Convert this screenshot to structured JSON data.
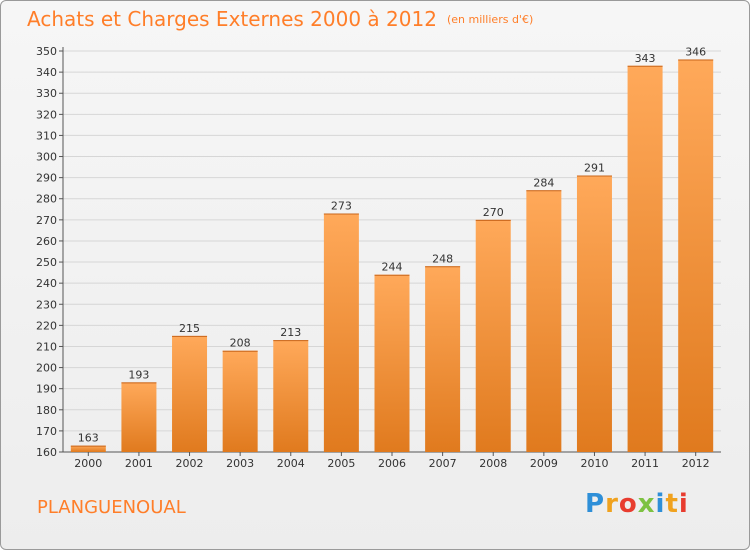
{
  "header": {
    "title": "Achats et Charges Externes 2000 à 2012",
    "unit": "(en milliers d'€)"
  },
  "footer": {
    "location": "PLANGUENOUAL",
    "brand_letters": [
      {
        "char": "P",
        "color": "#2e8fd8"
      },
      {
        "char": "r",
        "color": "#f0a21e"
      },
      {
        "char": "o",
        "color": "#e83c2f"
      },
      {
        "char": "x",
        "color": "#7dc242"
      },
      {
        "char": "i",
        "color": "#2e8fd8"
      },
      {
        "char": "t",
        "color": "#f0a21e"
      },
      {
        "char": "i",
        "color": "#e83c2f"
      }
    ]
  },
  "colors": {
    "bar_top": "#ffa95a",
    "bar_bottom": "#e07a1e",
    "accent": "#ff7e29"
  },
  "chart_data": {
    "type": "bar",
    "categories": [
      "2000",
      "2001",
      "2002",
      "2003",
      "2004",
      "2005",
      "2006",
      "2007",
      "2008",
      "2009",
      "2010",
      "2011",
      "2012"
    ],
    "values": [
      163,
      193,
      215,
      208,
      213,
      273,
      244,
      248,
      270,
      284,
      291,
      343,
      346
    ],
    "ylim": [
      160,
      350
    ],
    "yticks": [
      160,
      170,
      180,
      190,
      200,
      210,
      220,
      230,
      240,
      250,
      260,
      270,
      280,
      290,
      300,
      310,
      320,
      330,
      340,
      350
    ],
    "grid": true,
    "data_labels": true
  }
}
